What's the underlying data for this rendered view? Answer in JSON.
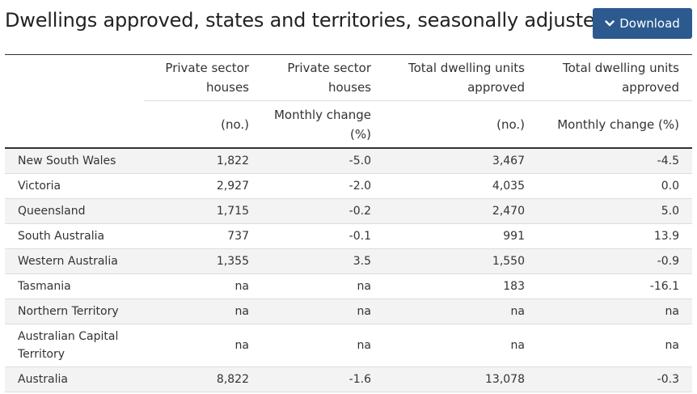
{
  "title": "Dwellings approved, states and territories, seasonally adjusted",
  "download_button": {
    "label": "Download",
    "icon": "chevron-down-icon"
  },
  "colors": {
    "button_background": "#2c5a8f",
    "row_stripe": "#f3f3f3",
    "rule": "#333333"
  },
  "table": {
    "header_row1": [
      "",
      "Private sector houses",
      "Private sector houses",
      "Total dwelling units approved",
      "Total dwelling units approved"
    ],
    "header_row2": [
      "",
      "(no.)",
      "Monthly change (%)",
      "(no.)",
      "Monthly change (%)"
    ],
    "rows": [
      [
        "New South Wales",
        "1,822",
        "-5.0",
        "3,467",
        "-4.5"
      ],
      [
        "Victoria",
        "2,927",
        "-2.0",
        "4,035",
        "0.0"
      ],
      [
        "Queensland",
        "1,715",
        "-0.2",
        "2,470",
        "5.0"
      ],
      [
        "South Australia",
        "737",
        "-0.1",
        "991",
        "13.9"
      ],
      [
        "Western Australia",
        "1,355",
        "3.5",
        "1,550",
        "-0.9"
      ],
      [
        "Tasmania",
        "na",
        "na",
        "183",
        "-16.1"
      ],
      [
        "Northern Territory",
        "na",
        "na",
        "na",
        "na"
      ],
      [
        "Australian Capital Territory",
        "na",
        "na",
        "na",
        "na"
      ],
      [
        "Australia",
        "8,822",
        "-1.6",
        "13,078",
        "-0.3"
      ]
    ]
  }
}
